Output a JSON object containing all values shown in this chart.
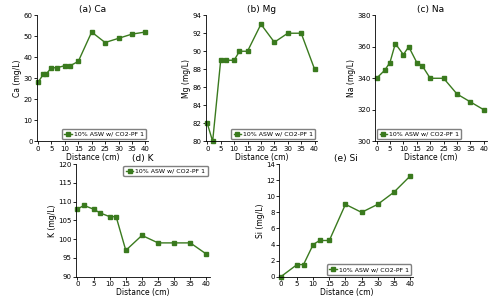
{
  "ca": {
    "title": "(a) Ca",
    "xlabel": "Distance (cm)",
    "ylabel": "Ca (mg/L)",
    "x": [
      0,
      2,
      3,
      5,
      7,
      10,
      12,
      15,
      20,
      25,
      30,
      35,
      40
    ],
    "y": [
      28,
      32,
      32,
      35,
      35,
      36,
      36,
      38,
      52,
      47,
      49,
      51,
      52
    ],
    "ylim": [
      0,
      60
    ],
    "yticks": [
      0,
      10,
      20,
      30,
      40,
      50,
      60
    ],
    "legend": "10% ASW w/ CO2-PF 1",
    "legend_loc": "lower right"
  },
  "mg": {
    "title": "(b) Mg",
    "xlabel": "Distance (cm)",
    "ylabel": "Mg (mg/L)",
    "x": [
      0,
      2,
      5,
      7,
      10,
      12,
      15,
      20,
      25,
      30,
      35,
      40
    ],
    "y": [
      82,
      80,
      89,
      89,
      89,
      90,
      90,
      93,
      91,
      92,
      92,
      88
    ],
    "ylim": [
      80,
      94
    ],
    "yticks": [
      80,
      82,
      84,
      86,
      88,
      90,
      92,
      94
    ],
    "legend": "10% ASW w/ CO2-PF 1",
    "legend_loc": "lower right"
  },
  "na": {
    "title": "(c) Na",
    "xlabel": "Distance (cm)",
    "ylabel": "Na (mg/L)",
    "x": [
      0,
      3,
      5,
      7,
      10,
      12,
      15,
      17,
      20,
      25,
      30,
      35,
      40
    ],
    "y": [
      340,
      345,
      350,
      362,
      355,
      360,
      350,
      348,
      340,
      340,
      330,
      325,
      320
    ],
    "ylim": [
      300,
      380
    ],
    "yticks": [
      300,
      320,
      340,
      360,
      380
    ],
    "legend": "10% ASW w/ CO2-PF 1",
    "legend_loc": "lower left"
  },
  "k": {
    "title": "(d) K",
    "xlabel": "Distance (cm)",
    "ylabel": "K (mg/L)",
    "x": [
      0,
      2,
      5,
      7,
      10,
      12,
      15,
      20,
      25,
      30,
      35,
      40
    ],
    "y": [
      108,
      109,
      108,
      107,
      106,
      106,
      97,
      101,
      99,
      99,
      99,
      96
    ],
    "ylim": [
      90,
      120
    ],
    "yticks": [
      90,
      95,
      100,
      105,
      110,
      115,
      120
    ],
    "legend": "10% ASW w/ CO2-PF 1",
    "legend_loc": "upper right"
  },
  "si": {
    "title": "(e) Si",
    "xlabel": "Distance (cm)",
    "ylabel": "Si (mg/L)",
    "x": [
      0,
      5,
      7,
      10,
      12,
      15,
      20,
      25,
      30,
      35,
      40
    ],
    "y": [
      0,
      1.5,
      1.5,
      4.0,
      4.5,
      4.5,
      9.0,
      8.0,
      9.0,
      10.5,
      12.5
    ],
    "ylim": [
      0,
      14
    ],
    "yticks": [
      0,
      2,
      4,
      6,
      8,
      10,
      12,
      14
    ],
    "legend": "10% ASW w/ CO2-PF 1",
    "legend_loc": "lower right"
  },
  "line_color": "#3a7a1e",
  "marker": "s",
  "markersize": 2.5,
  "linewidth": 1.0,
  "fontsize_title": 6.5,
  "fontsize_label": 5.5,
  "fontsize_tick": 5.0,
  "fontsize_legend": 4.5,
  "xticks": [
    0,
    5,
    10,
    15,
    20,
    25,
    30,
    35,
    40
  ]
}
